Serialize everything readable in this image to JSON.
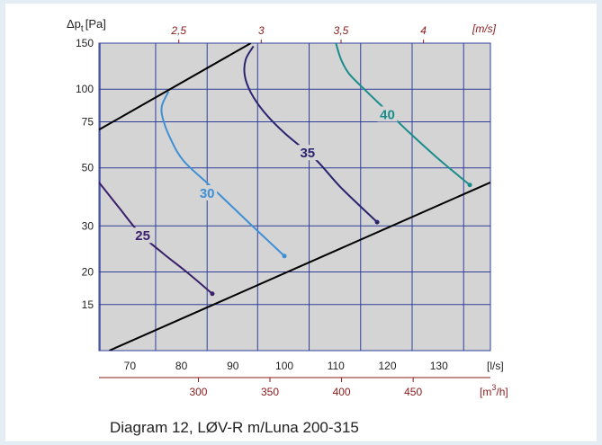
{
  "caption": "Diagram 12, LØV-R m/Luna 200-315",
  "colors": {
    "plot_bg": "#d4d4d4",
    "grid": "#2f3f9a",
    "system_lines": "#000000",
    "curve_25": "#3a1f6b",
    "curve_30": "#3f8fd4",
    "curve_35": "#2a2470",
    "curve_40": "#1a8c8c",
    "secondary_axis": "#8b1a1a"
  },
  "chart_data": {
    "type": "line",
    "title": "",
    "ylabel": "Δp",
    "ylabel_sub": "t",
    "ylabel_unit": "[Pa]",
    "xlabel": "[l/s]",
    "x_scale": "linear",
    "y_scale": "log",
    "xlim": [
      64,
      140
    ],
    "ylim": [
      10,
      150
    ],
    "x_ticks": [
      70,
      80,
      90,
      100,
      110,
      120,
      130
    ],
    "y_ticks": [
      15,
      20,
      30,
      50,
      75,
      100,
      150
    ],
    "grid": true,
    "x_grid_lines": [
      64.2,
      75,
      85,
      94.8,
      104.8,
      114.8,
      124.8,
      134.8
    ],
    "top_axis": {
      "unit": "[m/s]",
      "ticks": [
        {
          "label": "2,5",
          "x": 79.5
        },
        {
          "label": "3",
          "x": 95.5
        },
        {
          "label": "3,5",
          "x": 111.0
        },
        {
          "label": "4",
          "x": 127.0
        }
      ]
    },
    "secondary_x_axis": {
      "unit": "[m³/h]",
      "ticks": [
        {
          "label": "300",
          "x": 83.3
        },
        {
          "label": "350",
          "x": 97.2
        },
        {
          "label": "400",
          "x": 111.1
        },
        {
          "label": "450",
          "x": 125.0
        }
      ]
    },
    "boundary_lines": [
      {
        "points": [
          [
            64.0,
            70.0
          ],
          [
            93.5,
            150.0
          ]
        ]
      },
      {
        "points": [
          [
            66.0,
            10.0
          ],
          [
            140.0,
            44.0
          ]
        ]
      }
    ],
    "series": [
      {
        "name": "25",
        "points": [
          [
            64.0,
            44.0
          ],
          [
            68.0,
            35.0
          ],
          [
            72.0,
            28.0
          ],
          [
            76.5,
            23.5
          ],
          [
            81.0,
            20.0
          ],
          [
            86.0,
            16.5
          ]
        ],
        "label_at": [
          72.5,
          27.5
        ],
        "marker": [
          86.0,
          16.5
        ]
      },
      {
        "name": "30",
        "points": [
          [
            77.5,
            98.0
          ],
          [
            76.2,
            86.0
          ],
          [
            76.5,
            76.0
          ],
          [
            78.0,
            64.0
          ],
          [
            80.5,
            53.0
          ],
          [
            86.0,
            42.0
          ],
          [
            93.0,
            31.0
          ],
          [
            100.0,
            23.0
          ]
        ],
        "label_at": [
          85.0,
          40.0
        ],
        "marker": [
          100.0,
          23.0
        ]
      },
      {
        "name": "35",
        "points": [
          [
            94.0,
            146.0
          ],
          [
            92.5,
            130.0
          ],
          [
            92.3,
            113.0
          ],
          [
            93.5,
            97.0
          ],
          [
            96.0,
            82.0
          ],
          [
            100.0,
            68.0
          ],
          [
            106.0,
            54.0
          ],
          [
            111.0,
            42.0
          ],
          [
            118.0,
            31.0
          ]
        ],
        "label_at": [
          104.5,
          57.0
        ],
        "marker": [
          118.0,
          31.0
        ]
      },
      {
        "name": "40",
        "points": [
          [
            110.0,
            150.0
          ],
          [
            111.0,
            130.0
          ],
          [
            112.5,
            115.0
          ],
          [
            115.5,
            100.0
          ],
          [
            119.5,
            84.0
          ],
          [
            124.0,
            69.0
          ],
          [
            129.5,
            55.0
          ],
          [
            136.0,
            43.0
          ]
        ],
        "label_at": [
          120.0,
          80.0
        ],
        "marker": [
          136.0,
          43.0
        ]
      }
    ]
  }
}
